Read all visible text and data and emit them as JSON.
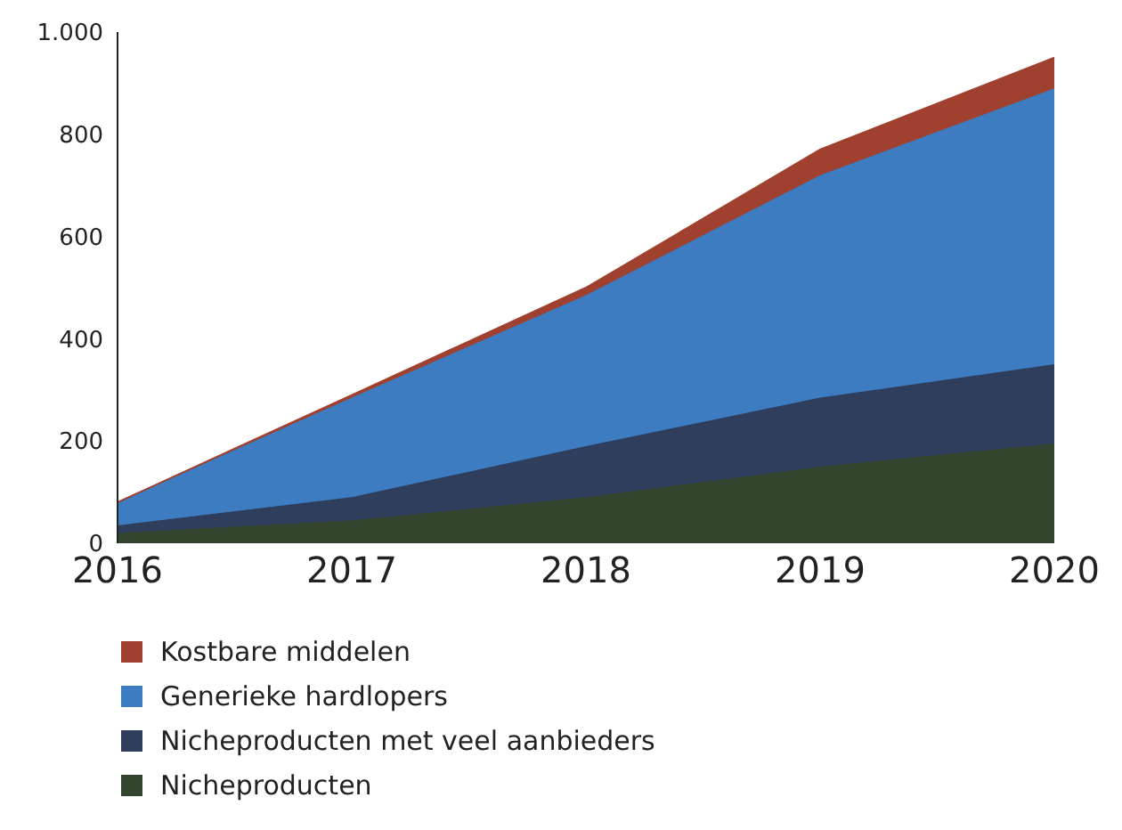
{
  "chart_data": {
    "type": "area",
    "stacked": true,
    "categories": [
      "2016",
      "2017",
      "2018",
      "2019",
      "2020"
    ],
    "series": [
      {
        "name": "Nicheproducten",
        "color": "#34452f",
        "values": [
          20,
          45,
          90,
          150,
          195
        ]
      },
      {
        "name": "Nicheproducten met veel aanbieders",
        "color": "#2e3e5c",
        "values": [
          15,
          45,
          100,
          135,
          155
        ]
      },
      {
        "name": "Generieke hardlopers",
        "color": "#3d7cc0",
        "values": [
          45,
          195,
          295,
          435,
          540
        ]
      },
      {
        "name": "Kostbare middelen",
        "color": "#a0402e",
        "values": [
          0,
          5,
          15,
          50,
          60
        ]
      }
    ],
    "ylim": [
      0,
      1000
    ],
    "yticks": [
      0,
      200,
      400,
      600,
      800,
      {
        "value": 1000,
        "label": "1.000"
      }
    ],
    "legend": "bottom left"
  }
}
